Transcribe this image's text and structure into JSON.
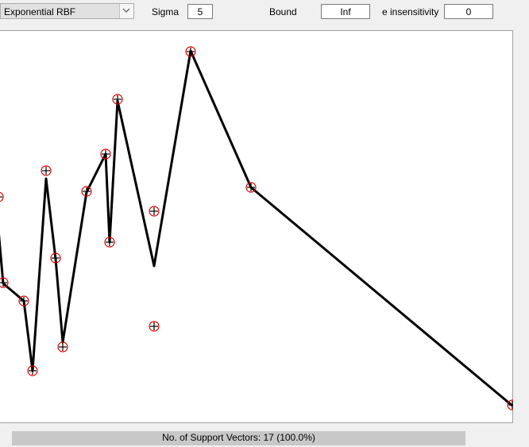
{
  "controls": {
    "kernel_value": "Exponential RBF",
    "sigma_label": "Sigma",
    "sigma_value": "5",
    "bound_label": "Bound",
    "bound_value": "Inf",
    "eins_label": "e insensitivity",
    "eins_value": "0"
  },
  "icons": {
    "dropdown": "chevron-down-icon",
    "data_point": "circled-plus-icon"
  },
  "colors": {
    "point": "#e00000",
    "marker": "#000000",
    "curve": "#000000",
    "status_bg": "#c8c8c8"
  },
  "status": {
    "text": "No. of Support Vectors: 17 (100.0%)"
  }
}
